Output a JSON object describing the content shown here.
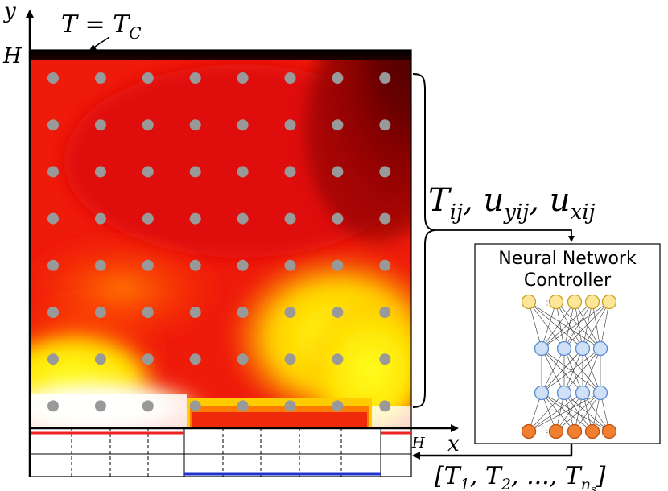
{
  "labels": {
    "y_axis": "y",
    "x_axis": "x",
    "H_left": "H",
    "H_bottom": "H",
    "top_condition": "T = T",
    "top_condition_sub": "C",
    "sensor_vars": "T",
    "sensor_vars_1_sub": "ij",
    "sensor_vars_2": "u",
    "sensor_vars_2_sub": "yij",
    "sensor_vars_3": "u",
    "sensor_vars_3_sub": "xij",
    "sensor_sep": ", ",
    "controller_line1": "Neural Network",
    "controller_line2": "Controller",
    "actuation_open": "[T",
    "actuation_sub1": "1",
    "actuation_mid1": ", T",
    "actuation_sub2": "2",
    "actuation_mid2": ", ..., T",
    "actuation_sub_n": "n",
    "actuation_sub_s": "s",
    "actuation_close": "]"
  },
  "sensors": {
    "rows": 8,
    "cols": 8,
    "color": "#999999"
  },
  "network": {
    "layers": [
      5,
      4,
      4,
      5
    ],
    "layer_colors": [
      "#fde69a",
      "#cfe0f7",
      "#cfe0f7",
      "#f08030"
    ],
    "stroke_colors": [
      "#c8a020",
      "#5a8ad0",
      "#5a8ad0",
      "#c05010"
    ]
  },
  "colors": {
    "heater_strip": "#ee2222",
    "cold_strip": "#2233cc"
  }
}
